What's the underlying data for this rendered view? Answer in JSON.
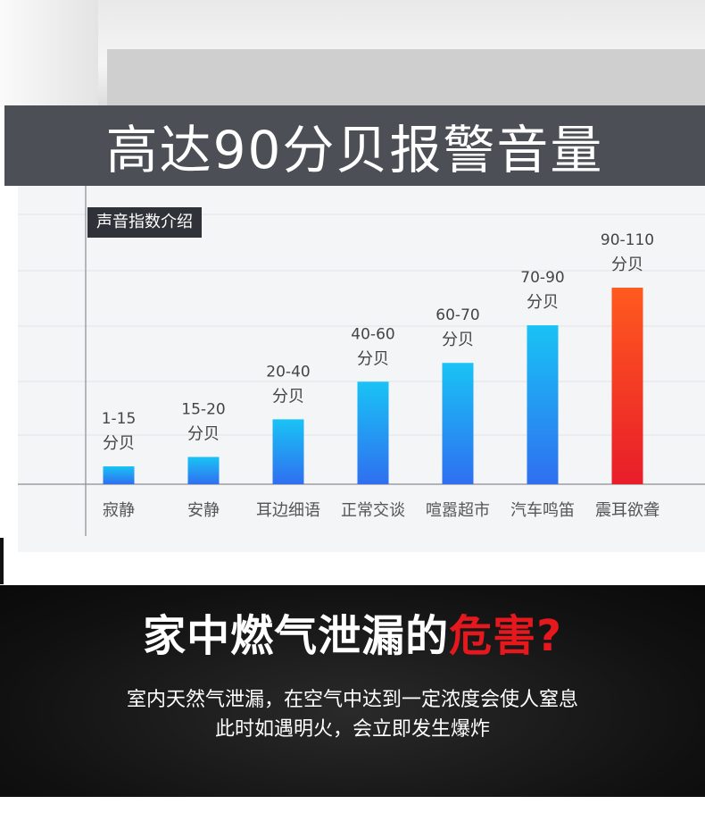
{
  "banner": {
    "title": "高达90分贝报警音量"
  },
  "chart_label": "声音指数介绍",
  "chart_data": {
    "type": "bar",
    "categories": [
      "寂静",
      "安静",
      "耳边细语",
      "正常交谈",
      "喧嚣超市",
      "汽车鸣笛",
      "震耳欲聋"
    ],
    "range_labels": [
      "1-15",
      "15-20",
      "20-40",
      "40-60",
      "60-70",
      "70-90",
      "90-110"
    ],
    "unit_label": "分贝",
    "values": [
      15,
      20,
      40,
      60,
      70,
      90,
      110
    ],
    "ylim": [
      0,
      120
    ],
    "grid": true,
    "colors": {
      "bar_top": "#19c3f5",
      "bar_bottom": "#2f6ff0",
      "highlight_top": "#ff5a1f",
      "highlight_bottom": "#e81d2a"
    }
  },
  "warning": {
    "headline_main": "家中燃气泄漏的",
    "headline_red": "危害?",
    "line1": "室内天然气泄漏，在空气中达到一定浓度会使人窒息",
    "line2": "此时如遇明火，会立即发生爆炸"
  }
}
